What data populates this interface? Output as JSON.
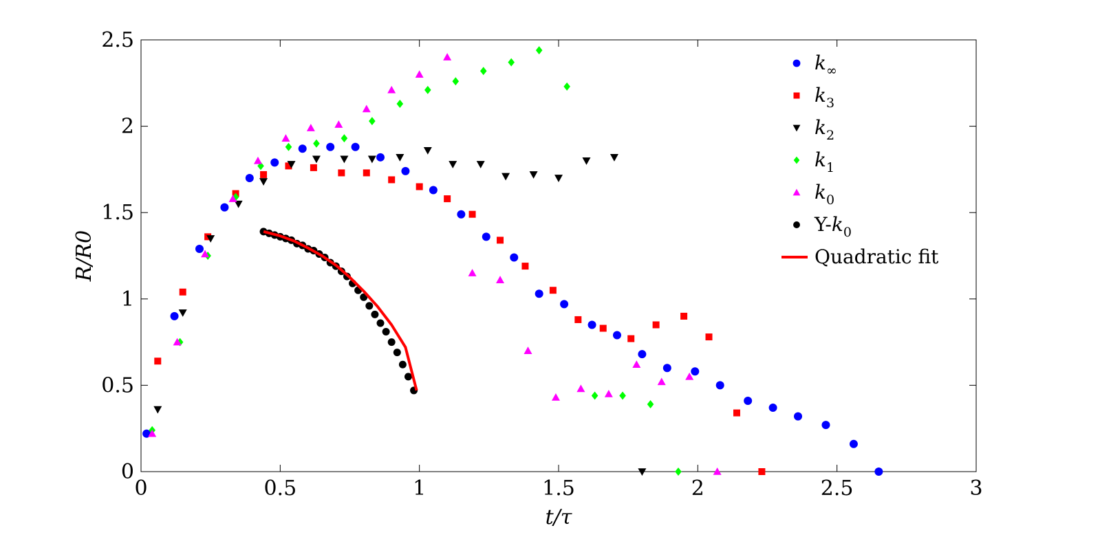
{
  "chart_data": {
    "type": "scatter",
    "title": "",
    "xlabel": "t/τ",
    "ylabel": "R/R0",
    "xlim": [
      0,
      3
    ],
    "ylim": [
      0,
      2.5
    ],
    "xticks": [
      0,
      0.5,
      1,
      1.5,
      2,
      2.5,
      3
    ],
    "xtick_labels": [
      "0",
      "0.5",
      "1",
      "1.5",
      "2",
      "2.5",
      "3"
    ],
    "yticks": [
      0,
      0.5,
      1,
      1.5,
      2,
      2.5
    ],
    "ytick_labels": [
      "0",
      "0.5",
      "1",
      "1.5",
      "2",
      "2.5"
    ],
    "grid": false,
    "legend_position": "top-right",
    "series": [
      {
        "name": "k∞",
        "legend_base": "k",
        "legend_sub": "∞",
        "legend_prefix": "",
        "marker": "circle",
        "color": "#0000ff",
        "points": [
          [
            0.02,
            0.22
          ],
          [
            0.12,
            0.9
          ],
          [
            0.21,
            1.29
          ],
          [
            0.3,
            1.53
          ],
          [
            0.39,
            1.7
          ],
          [
            0.48,
            1.79
          ],
          [
            0.58,
            1.87
          ],
          [
            0.68,
            1.88
          ],
          [
            0.77,
            1.88
          ],
          [
            0.86,
            1.82
          ],
          [
            0.95,
            1.74
          ],
          [
            1.05,
            1.63
          ],
          [
            1.15,
            1.49
          ],
          [
            1.24,
            1.36
          ],
          [
            1.34,
            1.24
          ],
          [
            1.43,
            1.03
          ],
          [
            1.52,
            0.97
          ],
          [
            1.62,
            0.85
          ],
          [
            1.71,
            0.79
          ],
          [
            1.8,
            0.68
          ],
          [
            1.89,
            0.6
          ],
          [
            1.99,
            0.58
          ],
          [
            2.08,
            0.5
          ],
          [
            2.18,
            0.41
          ],
          [
            2.27,
            0.37
          ],
          [
            2.36,
            0.32
          ],
          [
            2.46,
            0.27
          ],
          [
            2.56,
            0.16
          ],
          [
            2.65,
            0.0
          ]
        ]
      },
      {
        "name": "k3",
        "legend_base": "k",
        "legend_sub": "3",
        "legend_prefix": "",
        "marker": "square",
        "color": "#ff0000",
        "points": [
          [
            0.06,
            0.64
          ],
          [
            0.15,
            1.04
          ],
          [
            0.24,
            1.36
          ],
          [
            0.34,
            1.61
          ],
          [
            0.44,
            1.72
          ],
          [
            0.53,
            1.77
          ],
          [
            0.62,
            1.76
          ],
          [
            0.72,
            1.73
          ],
          [
            0.81,
            1.73
          ],
          [
            0.9,
            1.69
          ],
          [
            1.0,
            1.65
          ],
          [
            1.1,
            1.58
          ],
          [
            1.19,
            1.49
          ],
          [
            1.29,
            1.34
          ],
          [
            1.38,
            1.19
          ],
          [
            1.48,
            1.05
          ],
          [
            1.57,
            0.88
          ],
          [
            1.66,
            0.83
          ],
          [
            1.76,
            0.77
          ],
          [
            1.85,
            0.85
          ],
          [
            1.95,
            0.9
          ],
          [
            2.04,
            0.78
          ],
          [
            2.14,
            0.34
          ],
          [
            2.23,
            0.0
          ]
        ]
      },
      {
        "name": "k2",
        "legend_base": "k",
        "legend_sub": "2",
        "legend_prefix": "",
        "marker": "triangle-down",
        "color": "#000000",
        "points": [
          [
            0.06,
            0.36
          ],
          [
            0.15,
            0.92
          ],
          [
            0.25,
            1.35
          ],
          [
            0.35,
            1.55
          ],
          [
            0.44,
            1.68
          ],
          [
            0.54,
            1.78
          ],
          [
            0.63,
            1.81
          ],
          [
            0.73,
            1.81
          ],
          [
            0.83,
            1.81
          ],
          [
            0.93,
            1.82
          ],
          [
            1.03,
            1.86
          ],
          [
            1.12,
            1.78
          ],
          [
            1.22,
            1.78
          ],
          [
            1.31,
            1.71
          ],
          [
            1.41,
            1.72
          ],
          [
            1.5,
            1.7
          ],
          [
            1.6,
            1.8
          ],
          [
            1.7,
            1.82
          ],
          [
            1.8,
            0.0
          ]
        ]
      },
      {
        "name": "k1",
        "legend_base": "k",
        "legend_sub": "1",
        "legend_prefix": "",
        "marker": "diamond",
        "color": "#00ff00",
        "points": [
          [
            0.04,
            0.24
          ],
          [
            0.14,
            0.75
          ],
          [
            0.24,
            1.25
          ],
          [
            0.34,
            1.59
          ],
          [
            0.43,
            1.77
          ],
          [
            0.53,
            1.88
          ],
          [
            0.63,
            1.9
          ],
          [
            0.73,
            1.93
          ],
          [
            0.83,
            2.03
          ],
          [
            0.93,
            2.13
          ],
          [
            1.03,
            2.21
          ],
          [
            1.13,
            2.26
          ],
          [
            1.23,
            2.32
          ],
          [
            1.33,
            2.37
          ],
          [
            1.43,
            2.44
          ],
          [
            1.53,
            2.23
          ],
          [
            1.63,
            0.44
          ],
          [
            1.73,
            0.44
          ],
          [
            1.83,
            0.39
          ],
          [
            1.93,
            0.0
          ]
        ]
      },
      {
        "name": "k0",
        "legend_base": "k",
        "legend_sub": "0",
        "legend_prefix": "",
        "marker": "triangle-up",
        "color": "#ff00ff",
        "points": [
          [
            0.04,
            0.22
          ],
          [
            0.13,
            0.75
          ],
          [
            0.23,
            1.26
          ],
          [
            0.33,
            1.58
          ],
          [
            0.42,
            1.8
          ],
          [
            0.52,
            1.93
          ],
          [
            0.61,
            1.99
          ],
          [
            0.71,
            2.01
          ],
          [
            0.81,
            2.1
          ],
          [
            0.9,
            2.21
          ],
          [
            1.0,
            2.3
          ],
          [
            1.1,
            2.4
          ],
          [
            1.19,
            1.15
          ],
          [
            1.29,
            1.11
          ],
          [
            1.39,
            0.7
          ],
          [
            1.49,
            0.43
          ],
          [
            1.58,
            0.48
          ],
          [
            1.68,
            0.45
          ],
          [
            1.78,
            0.62
          ],
          [
            1.87,
            0.52
          ],
          [
            1.97,
            0.55
          ],
          [
            2.07,
            0.0
          ]
        ]
      },
      {
        "name": "Y-k0",
        "legend_base": "k",
        "legend_sub": "0",
        "legend_prefix": "Y-",
        "marker": "circle-small",
        "color": "#000000",
        "points": [
          [
            0.44,
            1.39
          ],
          [
            0.46,
            1.38
          ],
          [
            0.48,
            1.37
          ],
          [
            0.5,
            1.36
          ],
          [
            0.52,
            1.35
          ],
          [
            0.54,
            1.34
          ],
          [
            0.56,
            1.32
          ],
          [
            0.58,
            1.31
          ],
          [
            0.6,
            1.29
          ],
          [
            0.62,
            1.28
          ],
          [
            0.64,
            1.26
          ],
          [
            0.66,
            1.24
          ],
          [
            0.68,
            1.21
          ],
          [
            0.7,
            1.19
          ],
          [
            0.72,
            1.16
          ],
          [
            0.74,
            1.13
          ],
          [
            0.76,
            1.09
          ],
          [
            0.78,
            1.05
          ],
          [
            0.8,
            1.01
          ],
          [
            0.82,
            0.96
          ],
          [
            0.84,
            0.91
          ],
          [
            0.86,
            0.86
          ],
          [
            0.88,
            0.81
          ],
          [
            0.9,
            0.75
          ],
          [
            0.92,
            0.69
          ],
          [
            0.94,
            0.62
          ],
          [
            0.96,
            0.55
          ],
          [
            0.98,
            0.47
          ]
        ]
      },
      {
        "name": "Quadratic fit",
        "legend_base": "",
        "legend_sub": "",
        "legend_prefix": "Quadratic fit",
        "marker": "line",
        "color": "#ff0000",
        "points": [
          [
            0.44,
            1.39
          ],
          [
            0.5,
            1.365
          ],
          [
            0.55,
            1.335
          ],
          [
            0.6,
            1.295
          ],
          [
            0.65,
            1.25
          ],
          [
            0.7,
            1.195
          ],
          [
            0.75,
            1.125
          ],
          [
            0.8,
            1.045
          ],
          [
            0.85,
            0.955
          ],
          [
            0.9,
            0.85
          ],
          [
            0.95,
            0.72
          ],
          [
            0.99,
            0.47
          ]
        ]
      }
    ]
  }
}
